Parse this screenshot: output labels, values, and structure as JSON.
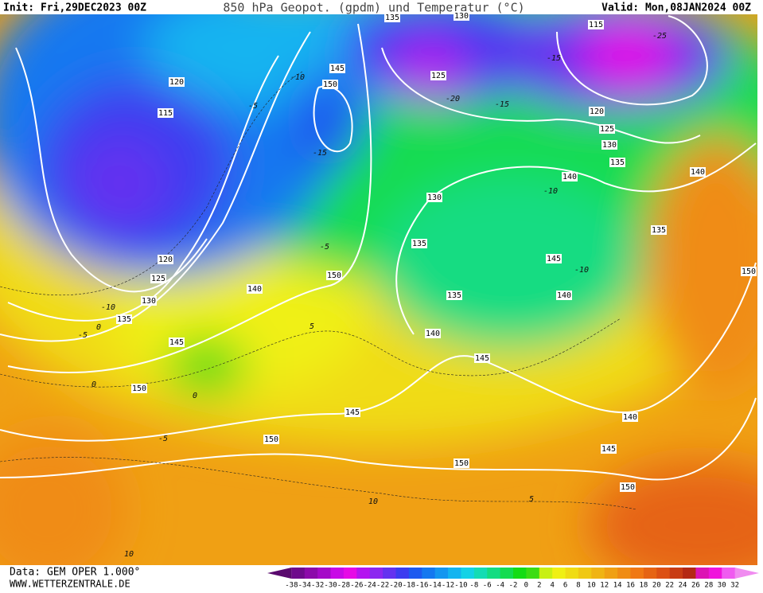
{
  "header": {
    "init": "Init: Fri,29DEC2023 00Z",
    "title": "850 hPa Geopot. (gpdm) und Temperatur (°C)",
    "valid": "Valid: Mon,08JAN2024 00Z"
  },
  "footer": {
    "data": "Data: GEM OPER 1.000°",
    "site": "WWW.WETTERZENTRALE.DE"
  },
  "legend": {
    "labels": [
      -38,
      -34,
      -32,
      -30,
      -28,
      -26,
      -24,
      -22,
      -20,
      -18,
      -16,
      -14,
      -12,
      -10,
      -8,
      -6,
      -4,
      -2,
      0,
      2,
      4,
      6,
      8,
      10,
      12,
      14,
      16,
      18,
      20,
      22,
      24,
      26,
      28,
      30,
      32
    ],
    "colors": [
      "#5a0a6e",
      "#6e0a8c",
      "#8c0aaa",
      "#a50ac8",
      "#c80ae6",
      "#e60ae6",
      "#b414f0",
      "#8c28f0",
      "#6432f0",
      "#3c3cf0",
      "#1e5af0",
      "#1478f0",
      "#1496f0",
      "#14b4f0",
      "#14d2e6",
      "#14dcb4",
      "#14dc82",
      "#14dc50",
      "#14dc14",
      "#3cdc14",
      "#c8f014",
      "#f0f014",
      "#f0dc14",
      "#f0c814",
      "#f0b414",
      "#f0a014",
      "#f08c14",
      "#f07814",
      "#e66414",
      "#dc5014",
      "#c83c14",
      "#b42814",
      "#dc14b4",
      "#f014dc",
      "#f05af0",
      "#f08cf0"
    ]
  },
  "map": {
    "geopotential_labels": [
      135,
      130,
      115,
      125,
      120,
      115,
      145,
      150,
      120,
      125,
      130,
      135,
      140,
      140,
      130,
      135,
      135,
      145,
      150,
      120,
      125,
      130,
      135,
      140,
      150,
      135,
      140,
      140,
      145,
      145,
      150,
      145,
      140,
      150,
      145,
      150,
      150
    ],
    "temperature_labels": [
      -25,
      -15,
      -20,
      -15,
      -5,
      -10,
      -15,
      -10,
      -10,
      -5,
      -10,
      -5,
      0,
      5,
      0,
      0,
      -5,
      5,
      10,
      10
    ]
  }
}
